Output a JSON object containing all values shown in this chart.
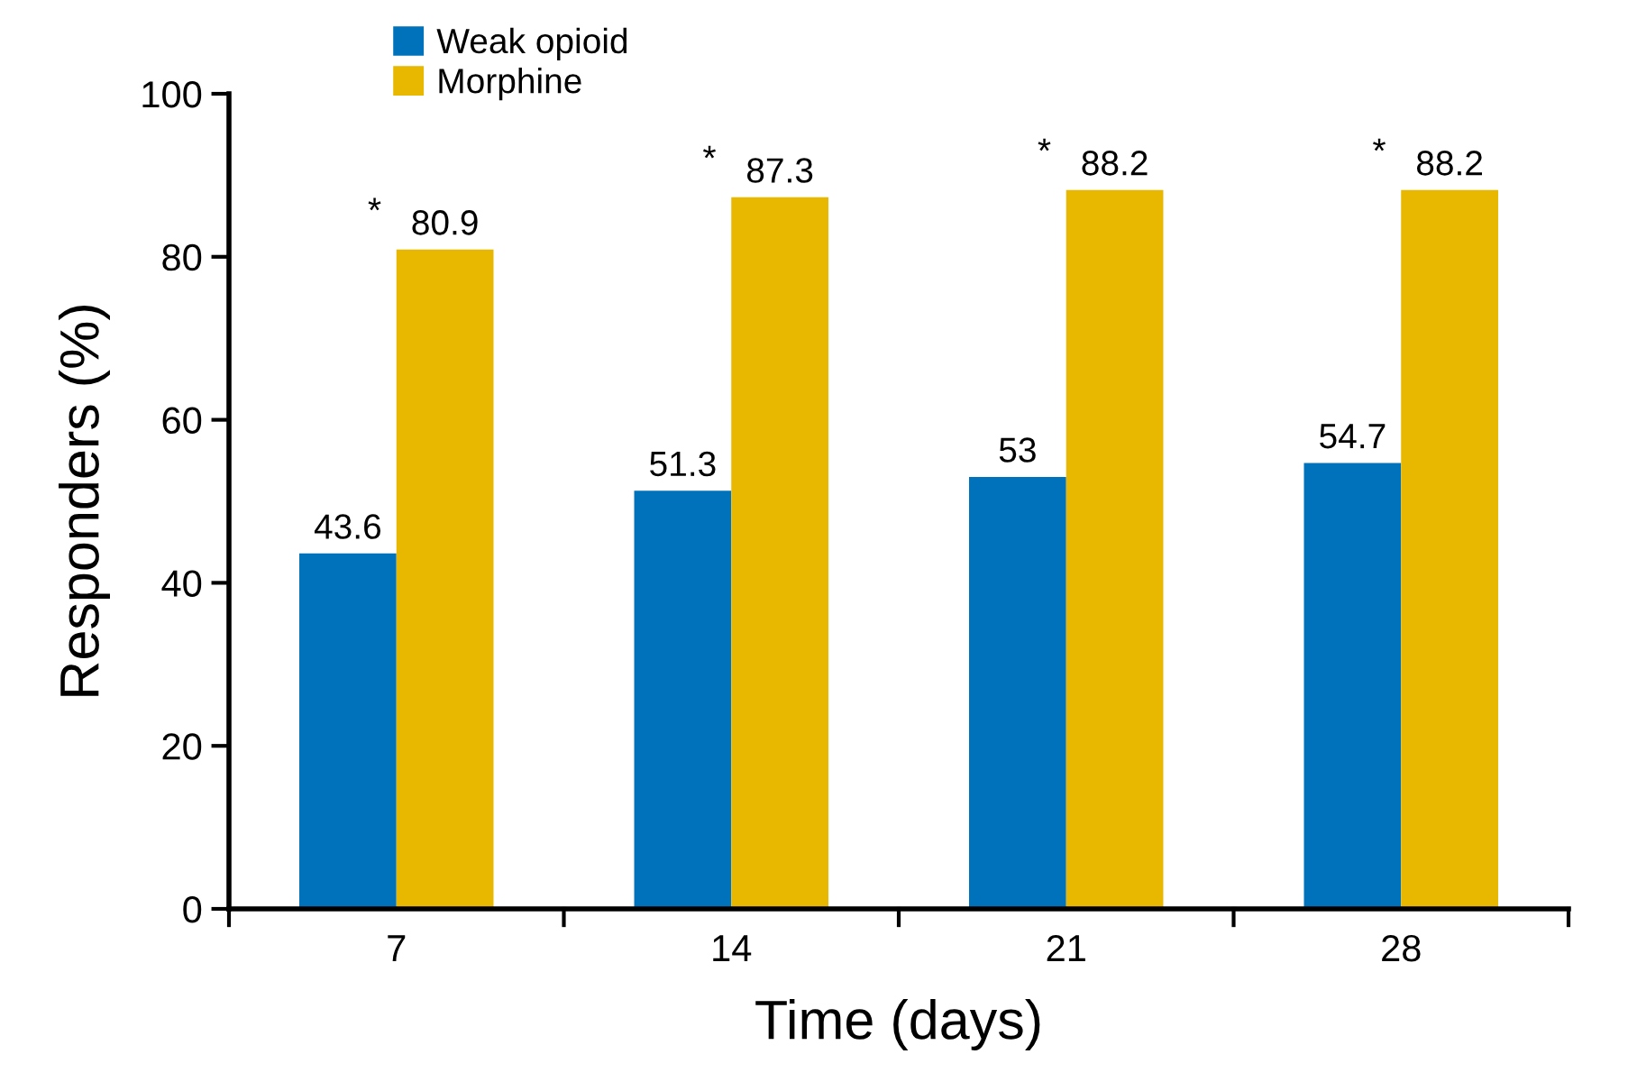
{
  "chart_data": {
    "type": "bar",
    "xlabel": "Time (days)",
    "ylabel": "Responders (%)",
    "categories": [
      "7",
      "14",
      "21",
      "28"
    ],
    "series": [
      {
        "name": "Weak opioid",
        "color": "#0072bc",
        "values": [
          43.6,
          51.3,
          53,
          54.7
        ]
      },
      {
        "name": "Morphine",
        "color": "#e8b800",
        "values": [
          80.9,
          87.3,
          88.2,
          88.2
        ]
      }
    ],
    "ylim": [
      0,
      100
    ],
    "yticks": [
      0,
      20,
      40,
      60,
      80,
      100
    ],
    "data_labels": true,
    "grid": false,
    "legend": "top left",
    "annotations": [
      "*",
      "*",
      "*",
      "*"
    ]
  }
}
